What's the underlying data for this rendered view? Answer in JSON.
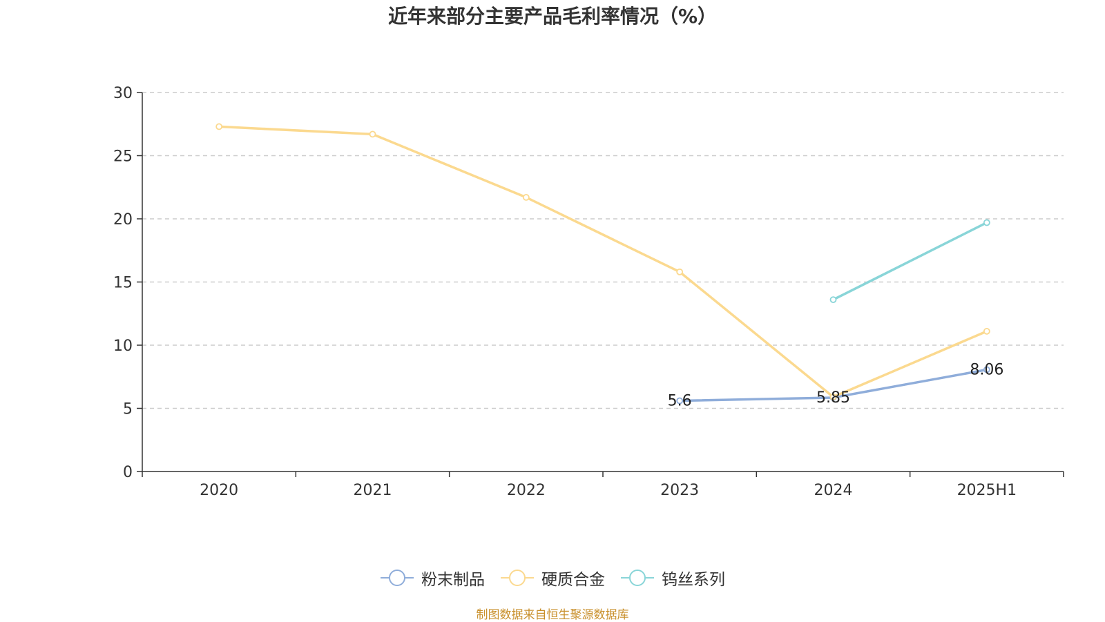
{
  "title": "近年来部分主要产品毛利率情况（%）",
  "source_note": "制图数据来自恒生聚源数据库",
  "chart_data": {
    "type": "line",
    "title": "近年来部分主要产品毛利率情况（%）",
    "xlabel": "",
    "ylabel": "",
    "categories": [
      "2020",
      "2021",
      "2022",
      "2023",
      "2024",
      "2025H1"
    ],
    "ylim": [
      0,
      30
    ],
    "yticks": [
      0,
      5,
      10,
      15,
      20,
      25,
      30
    ],
    "grid": true,
    "legend_position": "bottom",
    "series": [
      {
        "name": "粉末制品",
        "color": "#8fadda",
        "values": [
          null,
          null,
          null,
          5.6,
          5.85,
          8.06
        ],
        "labels": [
          null,
          null,
          null,
          "5.6",
          "5.85",
          "8.06"
        ]
      },
      {
        "name": "硬质合金",
        "color": "#fbd98f",
        "values": [
          27.3,
          26.7,
          21.7,
          15.8,
          5.9,
          11.1
        ],
        "labels": [
          null,
          null,
          null,
          null,
          null,
          null
        ]
      },
      {
        "name": "钨丝系列",
        "color": "#89d5d8",
        "values": [
          null,
          null,
          null,
          null,
          13.6,
          19.7
        ],
        "labels": [
          null,
          null,
          null,
          null,
          null,
          null
        ]
      }
    ]
  }
}
